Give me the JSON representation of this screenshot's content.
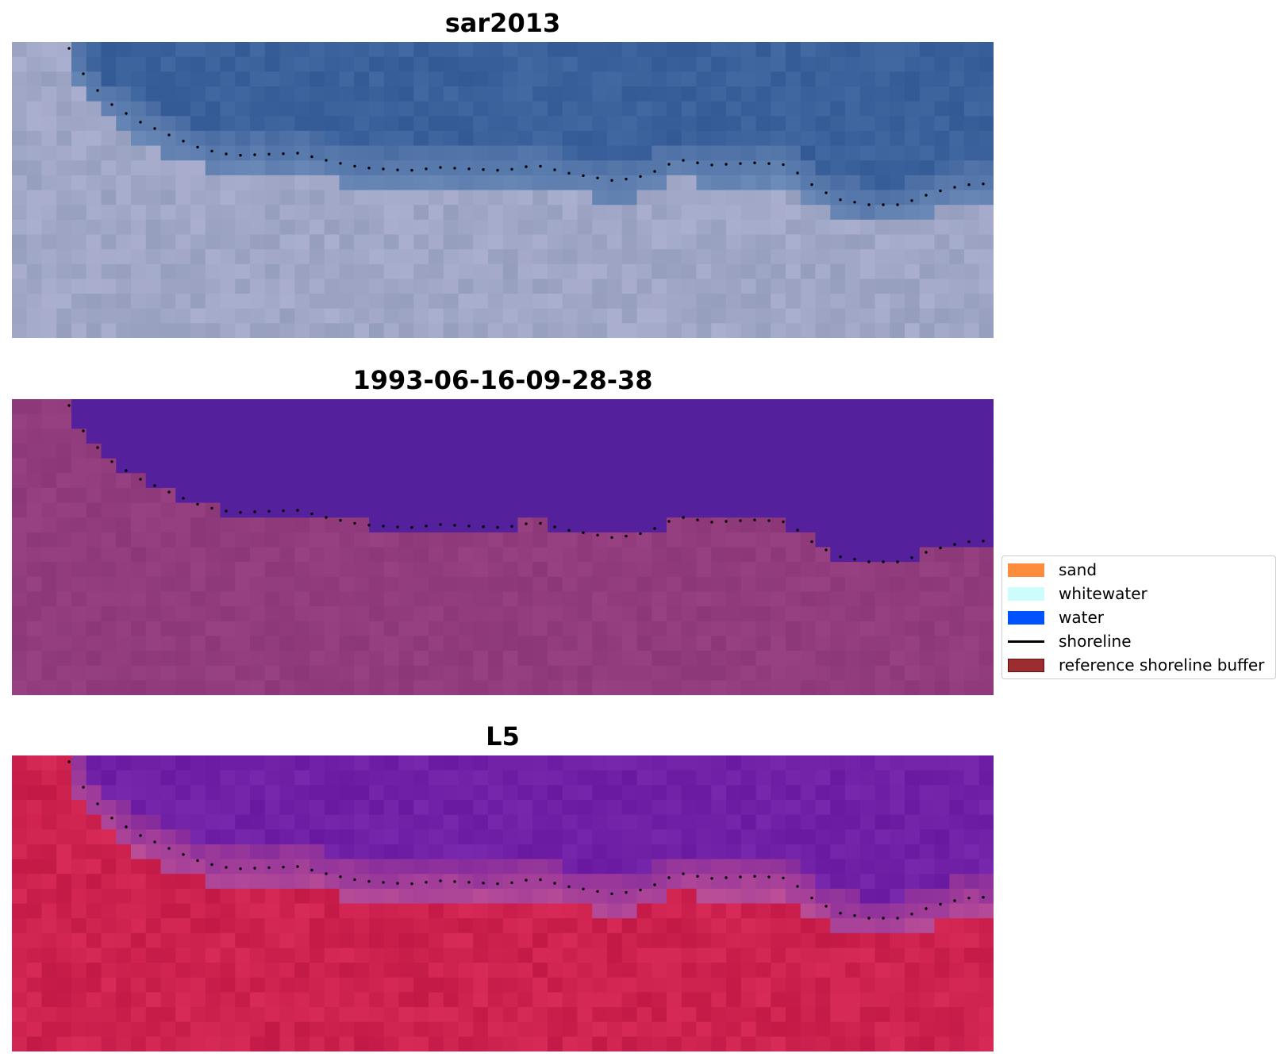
{
  "panels": [
    {
      "title": "sar2013"
    },
    {
      "title": "1993-06-16-09-28-38"
    },
    {
      "title": "L5"
    }
  ],
  "legend": {
    "items": [
      {
        "label": "sand",
        "color": "#fd8d3c",
        "kind": "patch"
      },
      {
        "label": "whitewater",
        "color": "#ccfcfc",
        "kind": "patch"
      },
      {
        "label": "water",
        "color": "#0052ff",
        "kind": "patch"
      },
      {
        "label": "shoreline",
        "color": "#000000",
        "kind": "line"
      },
      {
        "label": "reference shoreline buffer",
        "color": "#9b2d30",
        "kind": "patch"
      }
    ]
  },
  "colors": {
    "sar_water": "#3a62a0",
    "sar_land": "#a8adc6",
    "classified_water": "#55209a",
    "classified_land": "#8e3a78",
    "l5_water": "#6a1aa0",
    "l5_land": "#c01a48",
    "shoreline_dots": "#000000"
  }
}
